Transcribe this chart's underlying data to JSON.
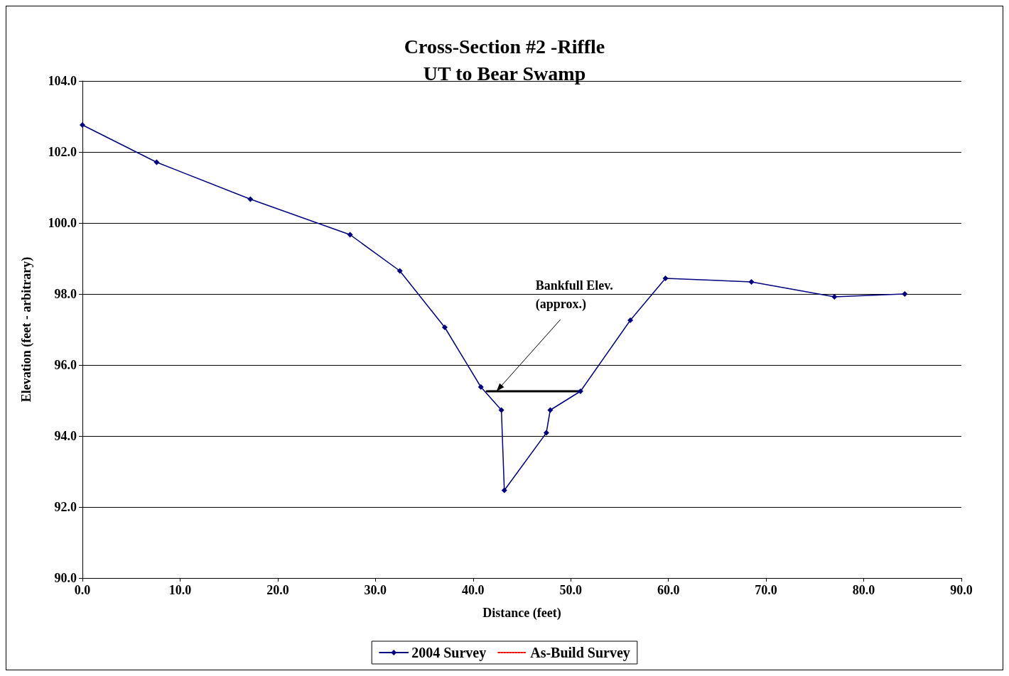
{
  "chart_data": {
    "type": "line",
    "title": "Cross-Section #2 -Riffle\nUT to Bear Swamp",
    "xlabel": "Distance (feet)",
    "ylabel": "Elevation (feet - arbitrary)",
    "series": [
      {
        "name": "2004 Survey",
        "color": "#000080",
        "marker": "diamond",
        "line_style": "solid",
        "x": [
          0.0,
          7.6,
          17.2,
          27.4,
          32.5,
          37.1,
          40.8,
          42.9,
          43.2,
          47.5,
          47.9,
          51.0,
          56.1,
          59.7,
          68.5,
          77.0,
          84.2
        ],
        "values": [
          102.76,
          101.71,
          100.67,
          99.67,
          98.65,
          97.06,
          95.38,
          94.73,
          92.47,
          94.09,
          94.73,
          95.26,
          97.26,
          98.44,
          98.34,
          97.92,
          98.0
        ]
      },
      {
        "name": "As-Build Survey",
        "color": "#ff0000",
        "marker": "none",
        "line_style": "dotted"
      },
      {
        "color": "#000000",
        "marker": "none",
        "line_style": "solid",
        "x": [
          41.4,
          51.0
        ],
        "values": [
          95.26,
          95.26
        ]
      }
    ],
    "annotations": [
      {
        "text": "Bankfull Elev.\n(approx.)",
        "x": 42.4,
        "y": 95.26
      }
    ],
    "xlim": [
      0,
      90
    ],
    "xticks": [
      {
        "value": 0,
        "label": "0.0"
      },
      {
        "value": 10,
        "label": "10.0"
      },
      {
        "value": 20,
        "label": "20.0"
      },
      {
        "value": 30,
        "label": "30.0"
      },
      {
        "value": 40,
        "label": "40.0"
      },
      {
        "value": 50,
        "label": "50.0"
      },
      {
        "value": 60,
        "label": "60.0"
      },
      {
        "value": 70,
        "label": "70.0"
      },
      {
        "value": 80,
        "label": "80.0"
      },
      {
        "value": 90,
        "label": "90.0"
      }
    ],
    "ylim": [
      90,
      104
    ],
    "yticks": [
      {
        "value": 90,
        "label": "90.0"
      },
      {
        "value": 92,
        "label": "92.0"
      },
      {
        "value": 94,
        "label": "94.0"
      },
      {
        "value": 96,
        "label": "96.0"
      },
      {
        "value": 98,
        "label": "98.0"
      },
      {
        "value": 100,
        "label": "100.0"
      },
      {
        "value": 102,
        "label": "102.0"
      },
      {
        "value": 104,
        "label": "104.0"
      }
    ],
    "grid": "y",
    "legend": "bottom"
  }
}
